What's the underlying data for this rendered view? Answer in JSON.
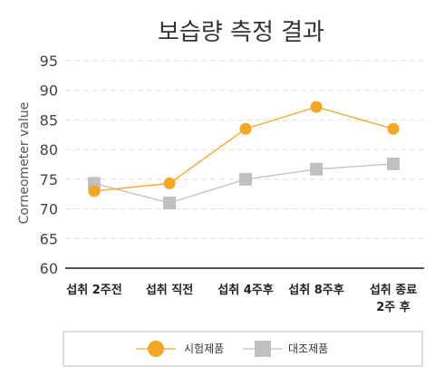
{
  "chart_data": {
    "type": "line",
    "title": "보습량 측정 결과",
    "ylabel": "Corneometer value",
    "xlabel": "",
    "ylim": [
      60,
      95
    ],
    "yticks": [
      60,
      65,
      70,
      75,
      80,
      85,
      90,
      95
    ],
    "grid": true,
    "legend_position": "bottom",
    "categories": [
      [
        "섭취 2주전"
      ],
      [
        "섭취 직전"
      ],
      [
        "섭취 4주후"
      ],
      [
        "섭취 8주후"
      ],
      [
        "섭취 종료",
        "2주 후"
      ]
    ],
    "series": [
      {
        "name": "시험제품",
        "color": "#f5a623",
        "marker": "circle",
        "values": [
          73.0,
          74.3,
          83.5,
          87.2,
          83.5
        ]
      },
      {
        "name": "대조제품",
        "color": "#c0c0c0",
        "marker": "square",
        "values": [
          74.3,
          71.0,
          75.0,
          76.7,
          77.6
        ]
      }
    ]
  }
}
